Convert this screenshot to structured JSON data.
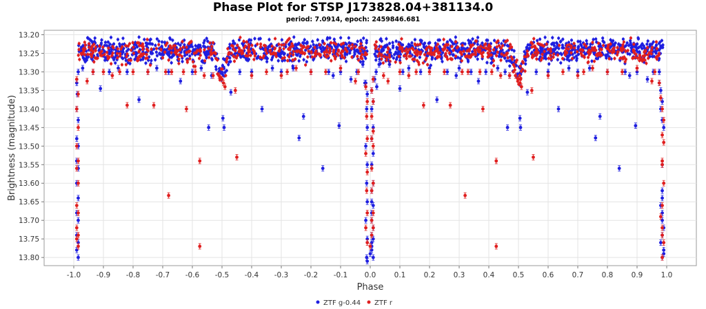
{
  "chart_data": {
    "type": "scatter",
    "title": "Phase Plot for STSP J173828.04+381134.0",
    "subtitle": "period: 7.0914, epoch: 2459846.681",
    "xlabel": "Phase",
    "ylabel": "Brightness (magnitude)",
    "xlim": [
      -1.1,
      1.1
    ],
    "ylim": [
      13.822,
      13.188
    ],
    "y_inverted": true,
    "x_ticks": [
      -1.0,
      -0.9,
      -0.8,
      -0.7,
      -0.6,
      -0.5,
      -0.4,
      -0.3,
      -0.2,
      -0.1,
      0.0,
      0.1,
      0.2,
      0.3,
      0.4,
      0.5,
      0.6,
      0.7,
      0.8,
      0.9,
      1.0
    ],
    "x_tick_labels": [
      "-1.0",
      "-0.9",
      "-0.8",
      "-0.7",
      "-0.6",
      "-0.5",
      "-0.4",
      "-0.3",
      "-0.2",
      "-0.1",
      "0.0",
      "0.1",
      "0.2",
      "0.3",
      "0.4",
      "0.5",
      "0.6",
      "0.7",
      "0.8",
      "0.9",
      "1.0"
    ],
    "y_ticks": [
      13.2,
      13.25,
      13.3,
      13.35,
      13.4,
      13.45,
      13.5,
      13.55,
      13.6,
      13.65,
      13.7,
      13.75,
      13.8
    ],
    "y_tick_labels": [
      "13.20",
      "13.25",
      "13.30",
      "13.35",
      "13.40",
      "13.45",
      "13.50",
      "13.55",
      "13.60",
      "13.65",
      "13.70",
      "13.75",
      "13.80"
    ],
    "grid": true,
    "legend_position": "bottom-center",
    "series": [
      {
        "name": "ZTF g-0.44",
        "color": "#1f1fe0",
        "points": [
          [
            0.01,
            13.8
          ],
          [
            0.0,
            13.79
          ],
          [
            0.005,
            13.78
          ],
          [
            0.005,
            13.77
          ],
          [
            0.005,
            13.76
          ],
          [
            0.01,
            13.75
          ],
          [
            0.005,
            13.74
          ],
          [
            0.01,
            13.72
          ],
          [
            0.005,
            13.7
          ],
          [
            0.005,
            13.68
          ],
          [
            0.01,
            13.66
          ],
          [
            0.005,
            13.65
          ],
          [
            0.005,
            13.62
          ],
          [
            0.01,
            13.6
          ],
          [
            0.005,
            13.55
          ],
          [
            0.01,
            13.52
          ],
          [
            0.005,
            13.48
          ],
          [
            0.01,
            13.45
          ],
          [
            0.005,
            13.4
          ],
          [
            0.01,
            13.38
          ],
          [
            0.005,
            13.35
          ],
          [
            0.01,
            13.32
          ],
          [
            0.985,
            13.8
          ],
          [
            0.99,
            13.79
          ],
          [
            0.99,
            13.78
          ],
          [
            0.98,
            13.76
          ],
          [
            0.985,
            13.74
          ],
          [
            0.99,
            13.72
          ],
          [
            0.985,
            13.7
          ],
          [
            0.985,
            13.68
          ],
          [
            0.98,
            13.66
          ],
          [
            0.985,
            13.64
          ],
          [
            0.985,
            13.62
          ],
          [
            0.985,
            13.55
          ],
          [
            0.99,
            13.45
          ],
          [
            0.985,
            13.43
          ],
          [
            0.98,
            13.4
          ],
          [
            0.985,
            13.38
          ],
          [
            0.98,
            13.35
          ],
          [
            0.975,
            13.33
          ],
          [
            0.975,
            13.3
          ],
          [
            0.03,
            13.28
          ],
          [
            0.02,
            13.3
          ],
          [
            0.015,
            13.32
          ],
          [
            0.022,
            13.34
          ],
          [
            0.065,
            13.28
          ],
          [
            0.1,
            13.345
          ],
          [
            0.11,
            13.3
          ],
          [
            0.13,
            13.29
          ],
          [
            0.17,
            13.3
          ],
          [
            0.2,
            13.29
          ],
          [
            0.225,
            13.375
          ],
          [
            0.26,
            13.3
          ],
          [
            0.29,
            13.31
          ],
          [
            0.3,
            13.29
          ],
          [
            0.34,
            13.3
          ],
          [
            0.365,
            13.325
          ],
          [
            0.39,
            13.3
          ],
          [
            0.43,
            13.29
          ],
          [
            0.455,
            13.3
          ],
          [
            0.463,
            13.45
          ],
          [
            0.47,
            13.31
          ],
          [
            0.505,
            13.425
          ],
          [
            0.507,
            13.45
          ],
          [
            0.53,
            13.355
          ],
          [
            0.56,
            13.3
          ],
          [
            0.6,
            13.3
          ],
          [
            0.635,
            13.4
          ],
          [
            0.67,
            13.29
          ],
          [
            0.7,
            13.3
          ],
          [
            0.74,
            13.29
          ],
          [
            0.76,
            13.478
          ],
          [
            0.775,
            13.42
          ],
          [
            0.8,
            13.3
          ],
          [
            0.84,
            13.56
          ],
          [
            0.86,
            13.3
          ],
          [
            0.875,
            13.31
          ],
          [
            0.895,
            13.445
          ],
          [
            0.9,
            13.3
          ],
          [
            0.935,
            13.32
          ],
          [
            0.955,
            13.3
          ],
          [
            -0.97,
            13.29
          ],
          [
            -0.935,
            13.3
          ],
          [
            -0.91,
            13.345
          ],
          [
            -0.88,
            13.3
          ],
          [
            -0.85,
            13.29
          ],
          [
            -0.82,
            13.3
          ],
          [
            -0.78,
            13.375
          ],
          [
            -0.75,
            13.3
          ],
          [
            -0.72,
            13.29
          ],
          [
            -0.68,
            13.3
          ],
          [
            -0.64,
            13.325
          ],
          [
            -0.6,
            13.3
          ],
          [
            -0.57,
            13.29
          ],
          [
            -0.545,
            13.45
          ],
          [
            -0.535,
            13.31
          ],
          [
            -0.497,
            13.425
          ],
          [
            -0.493,
            13.45
          ],
          [
            -0.47,
            13.355
          ],
          [
            -0.44,
            13.3
          ],
          [
            -0.4,
            13.3
          ],
          [
            -0.365,
            13.4
          ],
          [
            -0.33,
            13.29
          ],
          [
            -0.3,
            13.3
          ],
          [
            -0.26,
            13.29
          ],
          [
            -0.24,
            13.478
          ],
          [
            -0.225,
            13.42
          ],
          [
            -0.2,
            13.3
          ],
          [
            -0.16,
            13.56
          ],
          [
            -0.14,
            13.3
          ],
          [
            -0.125,
            13.31
          ],
          [
            -0.105,
            13.445
          ],
          [
            -0.1,
            13.3
          ],
          [
            -0.065,
            13.32
          ],
          [
            -0.045,
            13.3
          ],
          [
            -0.025,
            13.28
          ],
          [
            -0.018,
            13.33
          ],
          [
            -0.985,
            13.3
          ],
          [
            -0.99,
            13.33
          ],
          [
            -0.988,
            13.36
          ],
          [
            -0.99,
            13.4
          ],
          [
            -0.985,
            13.43
          ],
          [
            -0.99,
            13.48
          ],
          [
            -0.985,
            13.5
          ],
          [
            -0.99,
            13.54
          ],
          [
            -0.985,
            13.56
          ],
          [
            -0.99,
            13.6
          ],
          [
            -0.985,
            13.64
          ],
          [
            -0.99,
            13.68
          ],
          [
            -0.985,
            13.7
          ],
          [
            -0.99,
            13.74
          ],
          [
            -0.985,
            13.76
          ],
          [
            -0.99,
            13.78
          ],
          [
            -0.985,
            13.8
          ],
          [
            -0.015,
            13.33
          ],
          [
            -0.01,
            13.36
          ],
          [
            -0.012,
            13.4
          ],
          [
            -0.01,
            13.45
          ],
          [
            -0.015,
            13.5
          ],
          [
            -0.01,
            13.55
          ],
          [
            -0.012,
            13.6
          ],
          [
            -0.01,
            13.65
          ],
          [
            -0.015,
            13.7
          ],
          [
            -0.01,
            13.75
          ],
          [
            -0.012,
            13.8
          ],
          [
            -0.01,
            13.81
          ]
        ]
      },
      {
        "name": "ZTF r",
        "color": "#e01f1f",
        "points": [
          [
            0.0,
            13.77
          ],
          [
            0.005,
            13.74
          ],
          [
            0.01,
            13.72
          ],
          [
            0.005,
            13.7
          ],
          [
            0.01,
            13.68
          ],
          [
            0.005,
            13.62
          ],
          [
            0.01,
            13.6
          ],
          [
            0.005,
            13.56
          ],
          [
            0.01,
            13.5
          ],
          [
            0.005,
            13.48
          ],
          [
            0.01,
            13.46
          ],
          [
            0.005,
            13.42
          ],
          [
            0.01,
            13.38
          ],
          [
            0.005,
            13.35
          ],
          [
            0.01,
            13.32
          ],
          [
            0.985,
            13.8
          ],
          [
            0.99,
            13.76
          ],
          [
            0.985,
            13.74
          ],
          [
            0.985,
            13.72
          ],
          [
            0.98,
            13.69
          ],
          [
            0.985,
            13.66
          ],
          [
            0.99,
            13.6
          ],
          [
            0.985,
            13.55
          ],
          [
            0.985,
            13.54
          ],
          [
            0.99,
            13.49
          ],
          [
            0.985,
            13.47
          ],
          [
            0.99,
            13.43
          ],
          [
            0.985,
            13.4
          ],
          [
            0.98,
            13.37
          ],
          [
            0.975,
            13.33
          ],
          [
            0.045,
            13.31
          ],
          [
            0.06,
            13.325
          ],
          [
            0.1,
            13.3
          ],
          [
            0.13,
            13.31
          ],
          [
            0.155,
            13.3
          ],
          [
            0.18,
            13.39
          ],
          [
            0.2,
            13.3
          ],
          [
            0.25,
            13.3
          ],
          [
            0.27,
            13.39
          ],
          [
            0.31,
            13.3
          ],
          [
            0.32,
            13.633
          ],
          [
            0.33,
            13.3
          ],
          [
            0.37,
            13.3
          ],
          [
            0.38,
            13.4
          ],
          [
            0.41,
            13.3
          ],
          [
            0.425,
            13.77
          ],
          [
            0.425,
            13.54
          ],
          [
            0.44,
            13.31
          ],
          [
            0.47,
            13.31
          ],
          [
            0.49,
            13.31
          ],
          [
            0.5,
            13.32
          ],
          [
            0.505,
            13.33
          ],
          [
            0.51,
            13.34
          ],
          [
            0.545,
            13.35
          ],
          [
            0.55,
            13.53
          ],
          [
            0.6,
            13.31
          ],
          [
            0.65,
            13.3
          ],
          [
            0.7,
            13.31
          ],
          [
            0.72,
            13.3
          ],
          [
            0.75,
            13.29
          ],
          [
            0.8,
            13.3
          ],
          [
            0.85,
            13.3
          ],
          [
            0.9,
            13.29
          ],
          [
            0.95,
            13.325
          ],
          [
            0.96,
            13.3
          ],
          [
            -0.955,
            13.325
          ],
          [
            -0.935,
            13.3
          ],
          [
            -0.9,
            13.3
          ],
          [
            -0.87,
            13.31
          ],
          [
            -0.845,
            13.3
          ],
          [
            -0.82,
            13.39
          ],
          [
            -0.8,
            13.3
          ],
          [
            -0.75,
            13.3
          ],
          [
            -0.73,
            13.39
          ],
          [
            -0.69,
            13.3
          ],
          [
            -0.68,
            13.633
          ],
          [
            -0.67,
            13.3
          ],
          [
            -0.63,
            13.3
          ],
          [
            -0.62,
            13.4
          ],
          [
            -0.59,
            13.3
          ],
          [
            -0.575,
            13.77
          ],
          [
            -0.575,
            13.54
          ],
          [
            -0.56,
            13.31
          ],
          [
            -0.53,
            13.31
          ],
          [
            -0.51,
            13.31
          ],
          [
            -0.5,
            13.32
          ],
          [
            -0.495,
            13.33
          ],
          [
            -0.49,
            13.34
          ],
          [
            -0.455,
            13.35
          ],
          [
            -0.45,
            13.53
          ],
          [
            -0.4,
            13.31
          ],
          [
            -0.35,
            13.3
          ],
          [
            -0.3,
            13.31
          ],
          [
            -0.28,
            13.3
          ],
          [
            -0.25,
            13.29
          ],
          [
            -0.2,
            13.3
          ],
          [
            -0.15,
            13.3
          ],
          [
            -0.1,
            13.29
          ],
          [
            -0.05,
            13.325
          ],
          [
            -0.04,
            13.3
          ],
          [
            -0.99,
            13.32
          ],
          [
            -0.985,
            13.36
          ],
          [
            -0.99,
            13.4
          ],
          [
            -0.985,
            13.45
          ],
          [
            -0.99,
            13.5
          ],
          [
            -0.985,
            13.54
          ],
          [
            -0.99,
            13.56
          ],
          [
            -0.985,
            13.6
          ],
          [
            -0.99,
            13.66
          ],
          [
            -0.985,
            13.68
          ],
          [
            -0.99,
            13.72
          ],
          [
            -0.985,
            13.74
          ],
          [
            -0.99,
            13.75
          ],
          [
            -0.985,
            13.77
          ],
          [
            -0.015,
            13.34
          ],
          [
            -0.01,
            13.38
          ],
          [
            -0.012,
            13.42
          ],
          [
            -0.01,
            13.48
          ],
          [
            -0.015,
            13.52
          ],
          [
            -0.01,
            13.57
          ],
          [
            -0.012,
            13.62
          ],
          [
            -0.01,
            13.68
          ],
          [
            -0.015,
            13.72
          ],
          [
            -0.01,
            13.76
          ]
        ]
      }
    ]
  }
}
